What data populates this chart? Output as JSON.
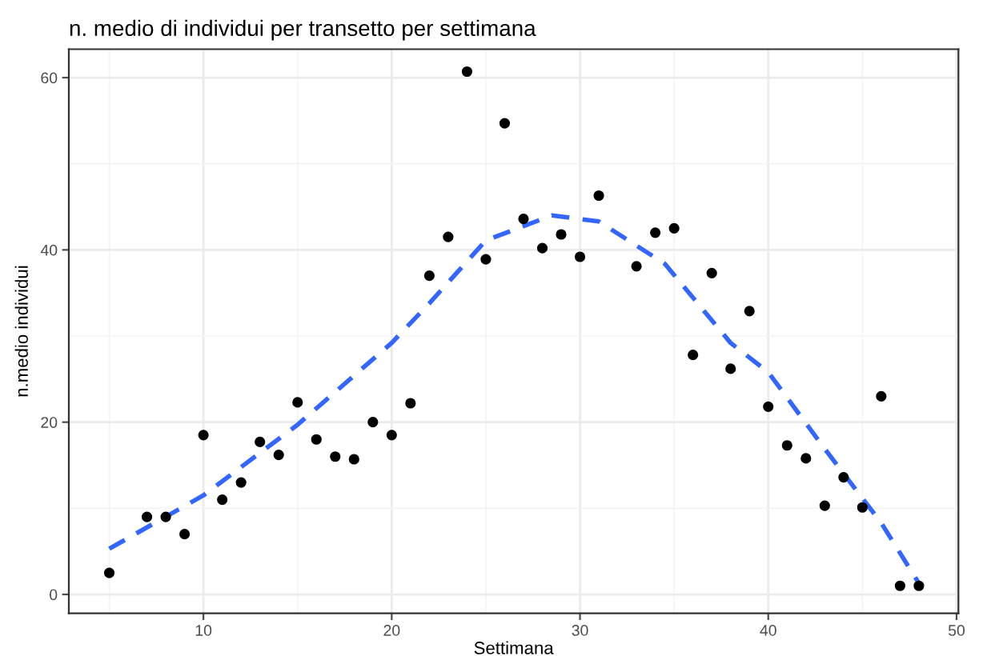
{
  "chart_data": {
    "type": "scatter",
    "title": "n. medio di individui per transetto per settimana",
    "xlabel": "Settimana",
    "ylabel": "n.medio individui",
    "series": [
      {
        "color": "#000000",
        "marker": "circle",
        "x": [
          5,
          7,
          8,
          9,
          10,
          11,
          12,
          13,
          14,
          15,
          16,
          17,
          18,
          19,
          20,
          21,
          22,
          23,
          24,
          25,
          26,
          27,
          28,
          29,
          30,
          31,
          33,
          34,
          35,
          36,
          37,
          38,
          39,
          40,
          41,
          42,
          43,
          44,
          45,
          46,
          47,
          48
        ],
        "values": [
          2.5,
          9,
          9,
          7,
          18.5,
          11,
          13,
          17.7,
          16.2,
          22.3,
          18,
          16,
          15.7,
          20,
          18.5,
          22.2,
          37,
          41.5,
          60.7,
          38.9,
          54.7,
          43.6,
          40.2,
          41.8,
          39.2,
          46.3,
          38.1,
          42,
          42.5,
          27.8,
          37.3,
          26.2,
          32.9,
          21.8,
          17.3,
          15.8,
          10.3,
          13.6,
          10.1,
          23,
          1,
          1
        ]
      },
      {
        "type": "line",
        "color": "#3366ff",
        "line_style": "dashed",
        "x": [
          5,
          10,
          15,
          20,
          22,
          25,
          28.5,
          31,
          34.5,
          38,
          40,
          43,
          46,
          48
        ],
        "values": [
          5.3,
          11.5,
          19.7,
          29.2,
          33.8,
          41.1,
          44,
          43.3,
          38.4,
          29.2,
          25.8,
          16.9,
          8.3,
          1.3
        ]
      }
    ],
    "xlim": [
      2.85,
      50.1
    ],
    "ylim": [
      -2.2,
      63.3
    ],
    "xticks": [
      10,
      20,
      30,
      40,
      50
    ],
    "yticks": [
      0,
      20,
      40,
      60
    ],
    "grid": true,
    "legend": false
  }
}
